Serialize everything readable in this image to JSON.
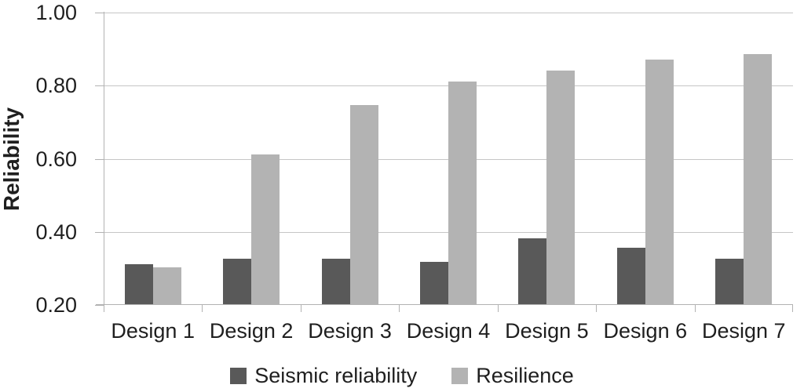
{
  "chart_data": {
    "type": "bar",
    "title": "",
    "categories": [
      "Design 1",
      "Design 2",
      "Design 3",
      "Design 4",
      "Design 5",
      "Design 6",
      "Design 7"
    ],
    "series": [
      {
        "name": "Seismic reliability",
        "color": "#595959",
        "values": [
          0.31,
          0.325,
          0.325,
          0.315,
          0.38,
          0.355,
          0.325
        ]
      },
      {
        "name": "Resilience",
        "color": "#b3b3b3",
        "values": [
          0.3,
          0.61,
          0.745,
          0.81,
          0.84,
          0.87,
          0.885
        ]
      }
    ],
    "xlabel": "",
    "ylabel": "Reliability",
    "ylim": [
      0.2,
      1.0
    ],
    "yticks": [
      0.2,
      0.4,
      0.6,
      0.8,
      1.0
    ],
    "ytick_labels": [
      "0.20",
      "0.40",
      "0.60",
      "0.80",
      "1.00"
    ],
    "grid": "horizontal gridlines at each y tick",
    "legend_position": "bottom center",
    "colors": {
      "background": "#ffffff",
      "gridline": "#c6c6c6",
      "axis": "#b2b2b2",
      "text": "#1f1f1f"
    }
  }
}
